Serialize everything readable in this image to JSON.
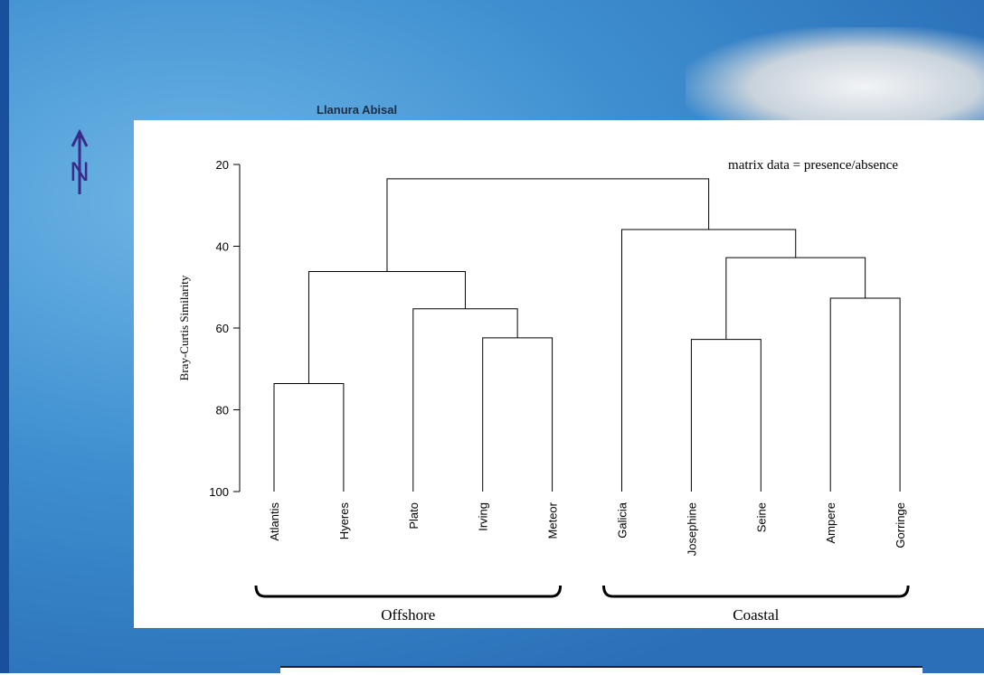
{
  "map": {
    "label": "Llanura Abisal",
    "north": "N"
  },
  "chart_data": {
    "type": "dendrogram",
    "annotation": "matrix data = presence/absence",
    "y_label": "Bray-Curtis Similarity",
    "ylim": [
      20,
      100
    ],
    "yticks": [
      20,
      40,
      60,
      80,
      100
    ],
    "leaves": [
      "Atlantis",
      "Hyeres",
      "Plato",
      "Irving",
      "Meteor",
      "Galicia",
      "Josephine",
      "Seine",
      "Ampere",
      "Gorringe"
    ],
    "merges": [
      {
        "children": [
          0,
          1
        ],
        "height": 73.6
      },
      {
        "children": [
          3,
          4
        ],
        "height": 62.4
      },
      {
        "children": [
          2,
          11
        ],
        "height": 55.3
      },
      {
        "children": [
          10,
          12
        ],
        "height": 46.2
      },
      {
        "children": [
          6,
          7
        ],
        "height": 62.8
      },
      {
        "children": [
          8,
          9
        ],
        "height": 52.7
      },
      {
        "children": [
          14,
          15
        ],
        "height": 42.8
      },
      {
        "children": [
          5,
          16
        ],
        "height": 35.9
      },
      {
        "children": [
          13,
          17
        ],
        "height": 23.5
      }
    ],
    "groups": [
      {
        "label": "Offshore",
        "leaves": [
          0,
          4
        ]
      },
      {
        "label": "Coastal",
        "leaves": [
          5,
          9
        ]
      }
    ]
  }
}
